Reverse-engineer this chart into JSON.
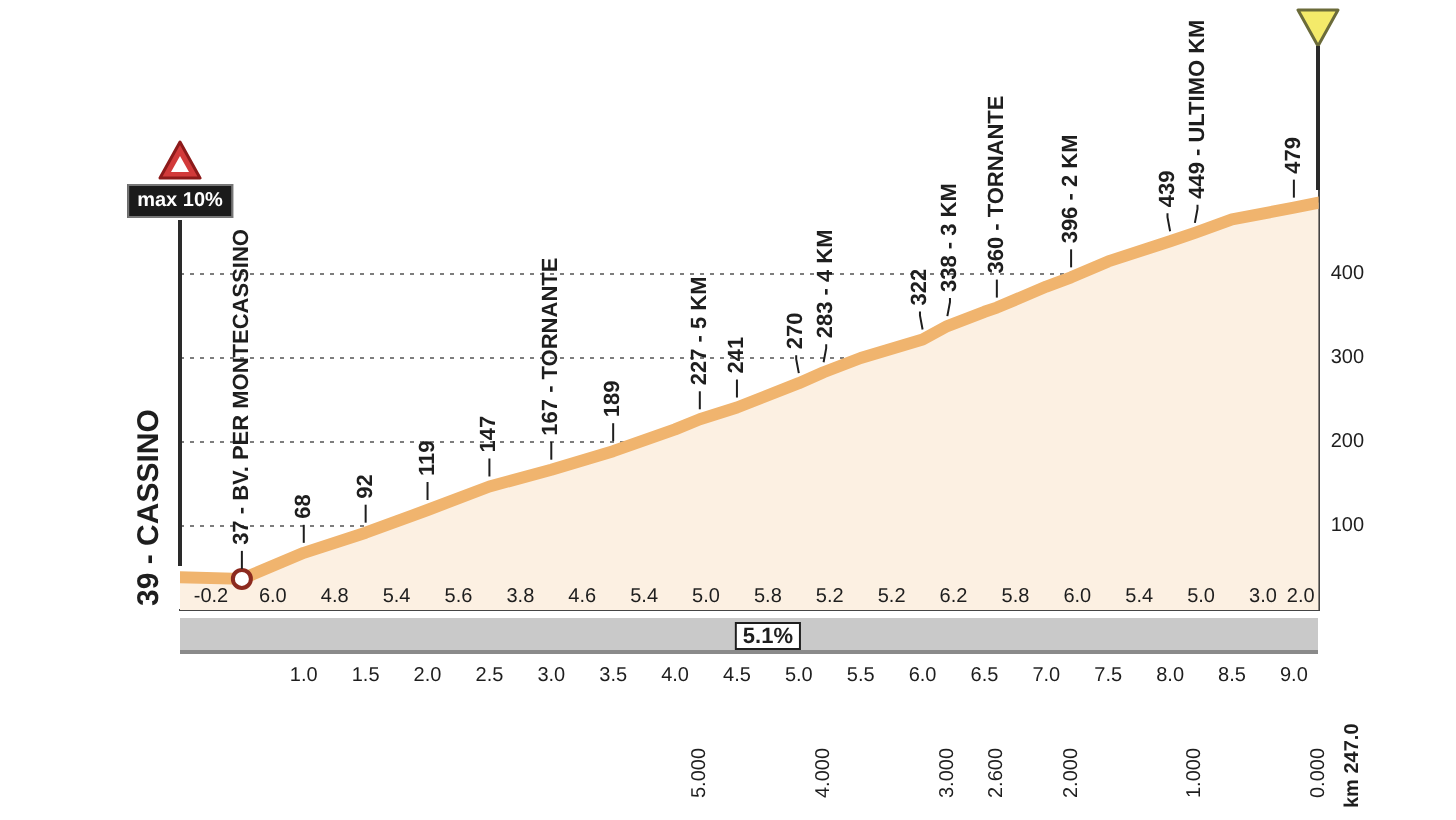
{
  "chart_data": {
    "type": "area",
    "series": [
      {
        "color": "#f0b46e",
        "x": [
          0,
          0.5,
          1,
          1.5,
          2,
          2.5,
          3,
          3.5,
          4,
          4.2,
          4.5,
          5,
          5.2,
          5.5,
          6,
          6.2,
          6.5,
          6.6,
          7,
          7.2,
          7.5,
          8,
          8.2,
          8.5,
          9,
          9.2
        ],
        "values": [
          39,
          37,
          68,
          92,
          119,
          147,
          167,
          189,
          215,
          227,
          241,
          270,
          283,
          300,
          322,
          338,
          355,
          360,
          385,
          396,
          415,
          439,
          449,
          465,
          479,
          485
        ]
      },
      {
        "type": "scatter",
        "color": "#ffffff",
        "marker": "circle",
        "x": [
          0.5
        ],
        "values": [
          37
        ]
      }
    ],
    "xlim": [
      0,
      9.2
    ],
    "xticks": [
      {
        "value": 1,
        "label": "1.0"
      },
      1.5,
      {
        "value": 2,
        "label": "2.0"
      },
      2.5,
      {
        "value": 3,
        "label": "3.0"
      },
      3.5,
      {
        "value": 4,
        "label": "4.0"
      },
      4.5,
      {
        "value": 5,
        "label": "5.0"
      },
      5.5,
      {
        "value": 6,
        "label": "6.0"
      },
      6.5,
      {
        "value": 7,
        "label": "7.0"
      },
      7.5,
      {
        "value": 8,
        "label": "8.0"
      },
      8.5,
      {
        "value": 9,
        "label": "9.0"
      }
    ],
    "x2lim": [
      9.2,
      0
    ],
    "x2ticks": [
      {
        "value": 5,
        "label": "5.000"
      },
      {
        "value": 4,
        "label": "4.000"
      },
      {
        "value": 3,
        "label": "3.000"
      },
      {
        "value": 2.6,
        "label": "2.600"
      },
      {
        "value": 2,
        "label": "2.000"
      },
      {
        "value": 1,
        "label": "1.000"
      },
      {
        "value": 0,
        "label": "0.000"
      }
    ],
    "ylim": [
      0,
      500
    ],
    "yticks": [
      100,
      200,
      300,
      400
    ],
    "grid": "y",
    "annotations": [
      {
        "text": "39 - CASSINO",
        "x": 0,
        "y": 39
      },
      {
        "text": "37 - BV. PER MONTECASSINO",
        "x": 0.5,
        "y": 37
      },
      {
        "text": "68",
        "x": 1,
        "y": 68
      },
      {
        "text": "92",
        "x": 1.5,
        "y": 92
      },
      {
        "text": "119",
        "x": 2,
        "y": 119
      },
      {
        "text": "147",
        "x": 2.5,
        "y": 147
      },
      {
        "text": "167 - TORNANTE",
        "x": 3,
        "y": 167
      },
      {
        "text": "189",
        "x": 3.5,
        "y": 189
      },
      {
        "text": "227 - 5 KM",
        "x": 4.2,
        "y": 227
      },
      {
        "text": "241",
        "x": 4.5,
        "y": 241
      },
      {
        "text": "270",
        "x": 5,
        "y": 270
      },
      {
        "text": "283 - 4 KM",
        "x": 5.2,
        "y": 283
      },
      {
        "text": "322",
        "x": 6,
        "y": 322
      },
      {
        "text": "338 - 3 KM",
        "x": 6.2,
        "y": 338
      },
      {
        "text": "360 - TORNANTE",
        "x": 6.6,
        "y": 360
      },
      {
        "text": "396 - 2 KM",
        "x": 7.2,
        "y": 396
      },
      {
        "text": "439",
        "x": 8,
        "y": 439
      },
      {
        "text": "449 - ULTIMO KM",
        "x": 8.2,
        "y": 449
      },
      {
        "text": "479",
        "x": 9,
        "y": 479
      },
      "max 10%",
      "5.1%",
      "km 247.0",
      "-0.2",
      "6.0",
      "4.8",
      "5.4",
      "5.6",
      "3.8",
      "4.6",
      "5.4",
      "5.0",
      "5.8",
      "5.2",
      "5.2",
      "6.2",
      "5.8",
      "6.0",
      "5.4",
      "5.0",
      "3.0",
      "2.0"
    ]
  }
}
